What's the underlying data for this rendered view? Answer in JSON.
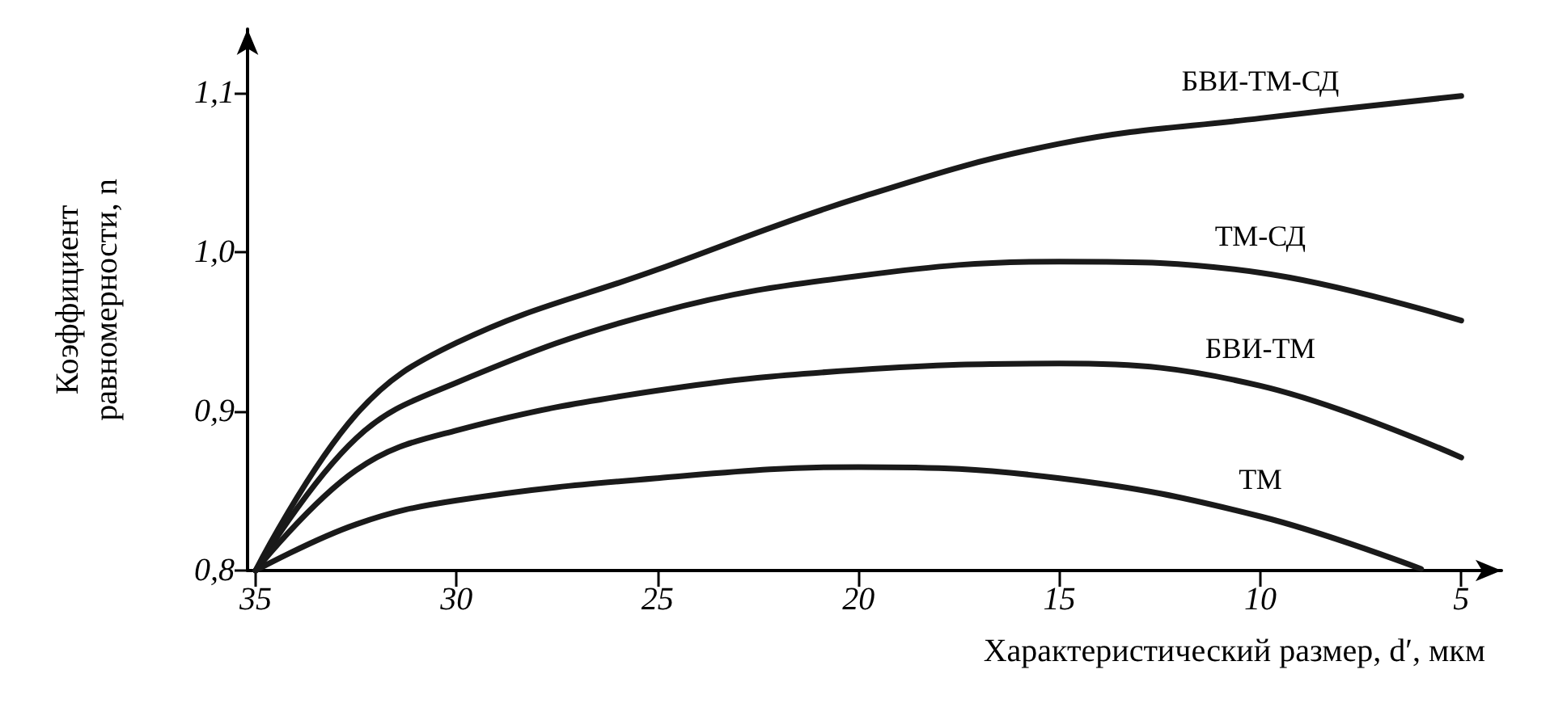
{
  "chart_data": {
    "type": "line",
    "xlabel": "Характеристический размер, d′, мкм",
    "ylabel": "Коэффициент\nравномерности, n",
    "x": [
      35,
      32.5,
      30,
      25,
      20,
      15,
      10,
      5
    ],
    "series": [
      {
        "name": "БВИ-ТМ-СД",
        "color": "#1a1a1a",
        "values": [
          0.8,
          0.898,
          0.943,
          0.989,
          1.034,
          1.068,
          1.084,
          1.098
        ]
      },
      {
        "name": "ТМ-СД",
        "color": "#1a1a1a",
        "values": [
          0.8,
          0.883,
          0.918,
          0.962,
          0.985,
          0.994,
          0.987,
          0.957
        ]
      },
      {
        "name": "БВИ-ТМ",
        "color": "#1a1a1a",
        "values": [
          0.8,
          0.863,
          0.888,
          0.913,
          0.926,
          0.93,
          0.916,
          0.871
        ]
      },
      {
        "name": "ТМ",
        "color": "#1a1a1a",
        "x": [
          35,
          32.5,
          30,
          25,
          20,
          15,
          10,
          6
        ],
        "values": [
          0.8,
          0.829,
          0.844,
          0.858,
          0.865,
          0.858,
          0.834,
          0.801
        ]
      }
    ],
    "xlim": [
      35.2,
      4
    ],
    "ylim": [
      0.8,
      1.14
    ],
    "xticks": [
      35,
      30,
      25,
      20,
      15,
      10,
      5
    ],
    "yticks": [
      {
        "value": 0.8,
        "label": "0,8"
      },
      {
        "value": 0.9,
        "label": "0,9"
      },
      {
        "value": 1.0,
        "label": "1,0"
      },
      {
        "value": 1.1,
        "label": "1,1"
      }
    ],
    "grid": false,
    "legend": false,
    "marker": "none",
    "line_style": "solid"
  }
}
